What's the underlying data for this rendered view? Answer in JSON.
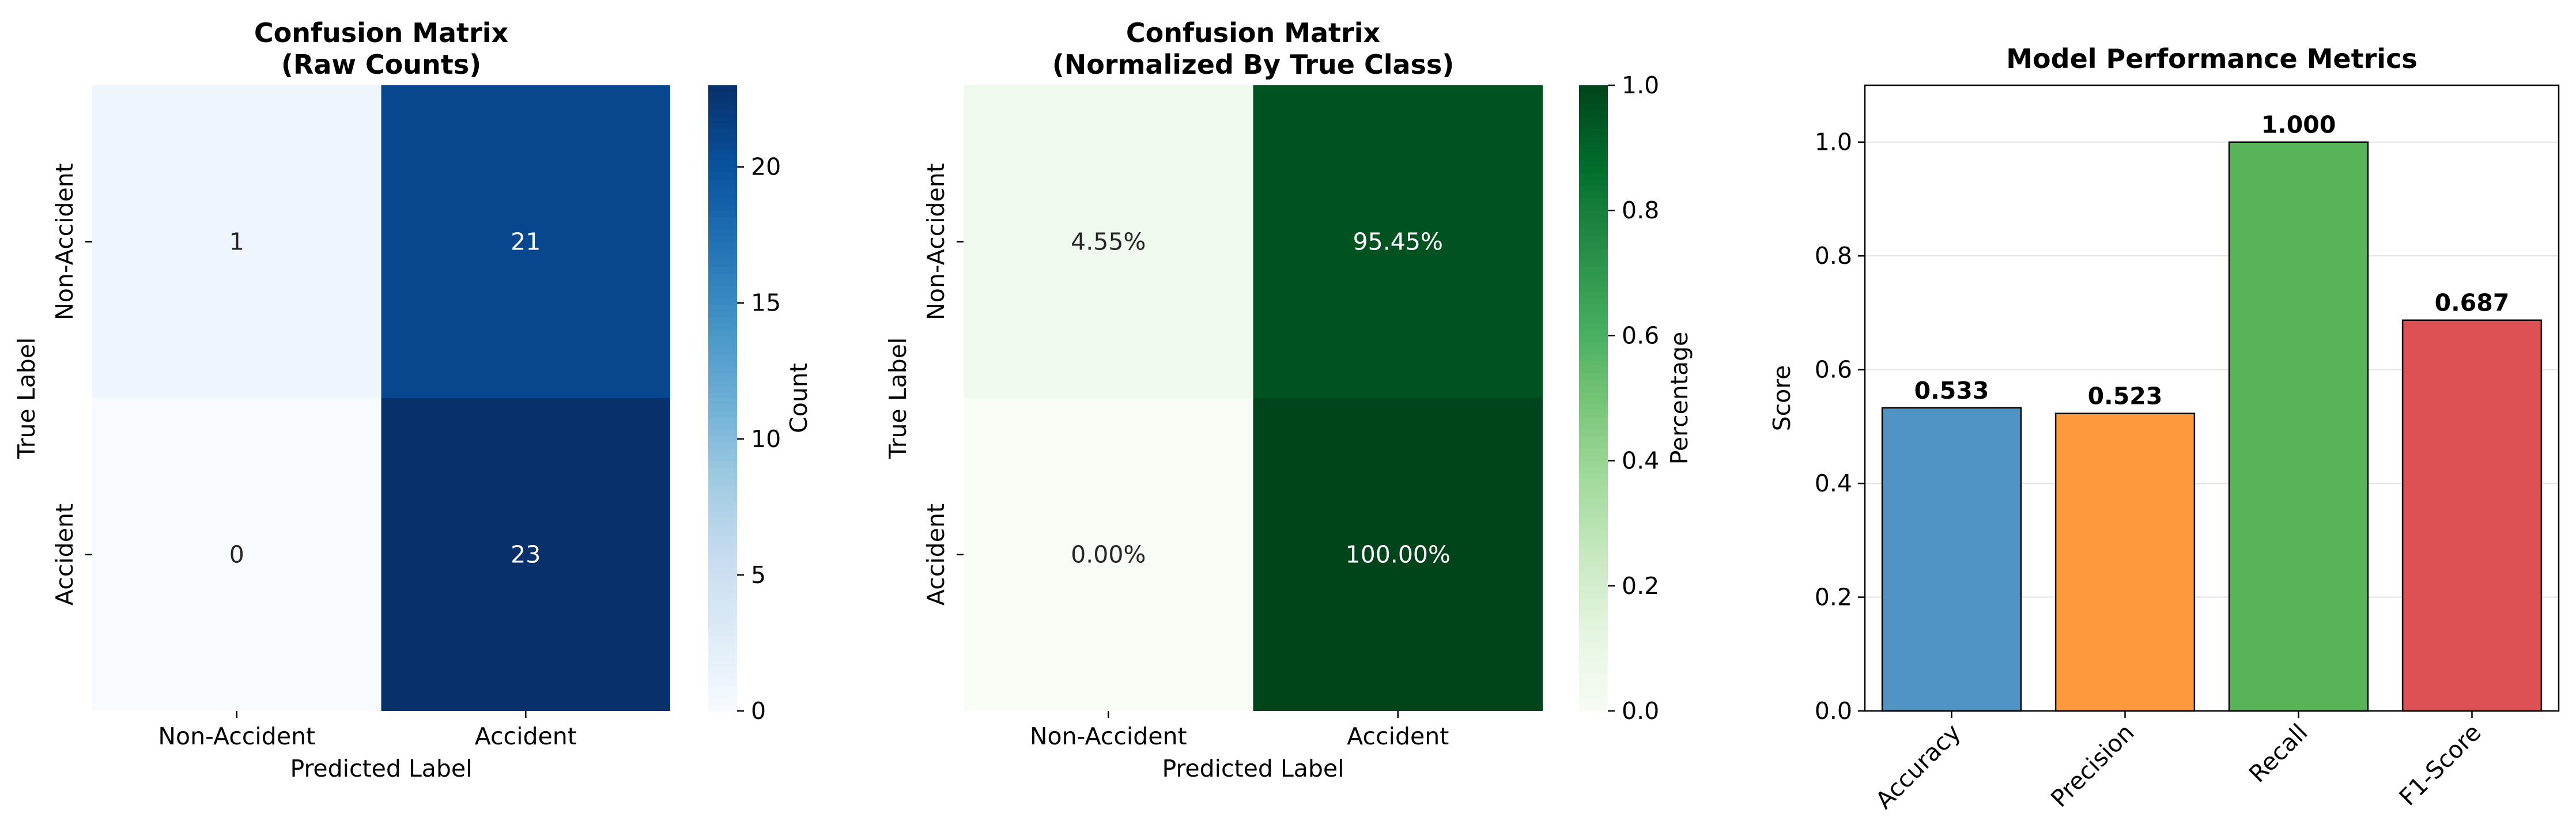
{
  "chart_data": [
    {
      "type": "heatmap",
      "title": "Confusion Matrix\n(Raw Counts)",
      "xlabel": "Predicted Label",
      "ylabel": "True Label",
      "x_categories": [
        "Non-Accident",
        "Accident"
      ],
      "y_categories": [
        "Non-Accident",
        "Accident"
      ],
      "values": [
        [
          1,
          21
        ],
        [
          0,
          23
        ]
      ],
      "cell_labels": [
        [
          "1",
          "21"
        ],
        [
          "0",
          "23"
        ]
      ],
      "colormap": "Blues",
      "colors": [
        "#f7fbff",
        "#deebf7",
        "#c6dbef",
        "#9ecae1",
        "#6baed6",
        "#4292c6",
        "#2171b5",
        "#08519c",
        "#08306b"
      ],
      "colorbar": {
        "label": "Count",
        "range": [
          0,
          23
        ],
        "ticks": [
          0,
          5,
          10,
          15,
          20
        ],
        "tick_labels": [
          "0",
          "5",
          "10",
          "15",
          "20"
        ]
      }
    },
    {
      "type": "heatmap",
      "title": "Confusion Matrix\n(Normalized By True Class)",
      "xlabel": "Predicted Label",
      "ylabel": "True Label",
      "x_categories": [
        "Non-Accident",
        "Accident"
      ],
      "y_categories": [
        "Non-Accident",
        "Accident"
      ],
      "values": [
        [
          0.0455,
          0.9545
        ],
        [
          0.0,
          1.0
        ]
      ],
      "cell_labels": [
        [
          "4.55%",
          "95.45%"
        ],
        [
          "0.00%",
          "100.00%"
        ]
      ],
      "colormap": "Greens",
      "colors": [
        "#f7fcf5",
        "#e5f5e0",
        "#c7e9c0",
        "#a1d99b",
        "#74c476",
        "#41ab5d",
        "#238b45",
        "#006d2c",
        "#00441b"
      ],
      "colorbar": {
        "label": "Percentage",
        "range": [
          0,
          1
        ],
        "ticks": [
          0,
          0.2,
          0.4,
          0.6,
          0.8,
          1.0
        ],
        "tick_labels": [
          "0.0",
          "0.2",
          "0.4",
          "0.6",
          "0.8",
          "1.0"
        ]
      }
    },
    {
      "type": "bar",
      "title": "Model Performance Metrics",
      "ylabel": "Score",
      "categories": [
        "Accuracy",
        "Precision",
        "Recall",
        "F1-Score"
      ],
      "values": [
        0.533,
        0.523,
        1.0,
        0.687
      ],
      "value_labels": [
        "0.533",
        "0.523",
        "1.000",
        "0.687"
      ],
      "colors": [
        "#4f94c4",
        "#ff993e",
        "#58b458",
        "#dd5152"
      ],
      "ylim": [
        0,
        1.1
      ],
      "yticks": [
        0,
        0.2,
        0.4,
        0.6,
        0.8,
        1.0
      ],
      "ytick_labels": [
        "0.0",
        "0.2",
        "0.4",
        "0.6",
        "0.8",
        "1.0"
      ],
      "grid": "y"
    }
  ]
}
